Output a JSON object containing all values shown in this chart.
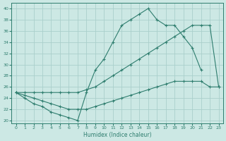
{
  "xlabel": "Humidex (Indice chaleur)",
  "xlim": [
    -0.5,
    23.5
  ],
  "ylim": [
    19.5,
    41
  ],
  "xticks": [
    0,
    1,
    2,
    3,
    4,
    5,
    6,
    7,
    8,
    9,
    10,
    11,
    12,
    13,
    14,
    15,
    16,
    17,
    18,
    19,
    20,
    21,
    22,
    23
  ],
  "yticks": [
    20,
    22,
    24,
    26,
    28,
    30,
    32,
    34,
    36,
    38,
    40
  ],
  "bg_color": "#cce8e4",
  "grid_color": "#aacfcb",
  "line_color": "#2e7d6e",
  "line_upper_x": [
    0,
    1,
    2,
    3,
    4,
    5,
    6,
    7,
    8,
    9,
    10,
    11,
    12,
    13,
    14,
    15,
    16,
    17,
    18,
    19,
    20,
    21
  ],
  "line_upper_y": [
    25,
    24,
    23,
    22.5,
    21.5,
    21,
    20.5,
    20,
    25,
    29,
    31,
    34,
    37,
    38,
    39,
    40,
    38,
    37,
    37,
    35,
    33,
    29
  ],
  "line_mid_x": [
    0,
    1,
    2,
    3,
    4,
    5,
    6,
    7,
    8,
    9,
    10,
    11,
    12,
    13,
    14,
    15,
    16,
    17,
    18,
    19,
    20,
    21,
    22,
    23
  ],
  "line_mid_y": [
    25,
    25,
    25,
    25,
    25,
    25,
    25,
    25,
    25.5,
    26,
    27,
    28,
    29,
    30,
    31,
    32,
    33,
    34,
    35,
    36,
    37,
    37,
    37,
    26
  ],
  "line_low_x": [
    0,
    1,
    2,
    3,
    4,
    5,
    6,
    7,
    8,
    9,
    10,
    11,
    12,
    13,
    14,
    15,
    16,
    17,
    18,
    19,
    20,
    21,
    22,
    23
  ],
  "line_low_y": [
    25,
    24.5,
    24,
    23.5,
    23,
    22.5,
    22,
    22,
    22,
    22.5,
    23,
    23.5,
    24,
    24.5,
    25,
    25.5,
    26,
    26.5,
    27,
    27,
    27,
    27,
    26,
    26
  ]
}
